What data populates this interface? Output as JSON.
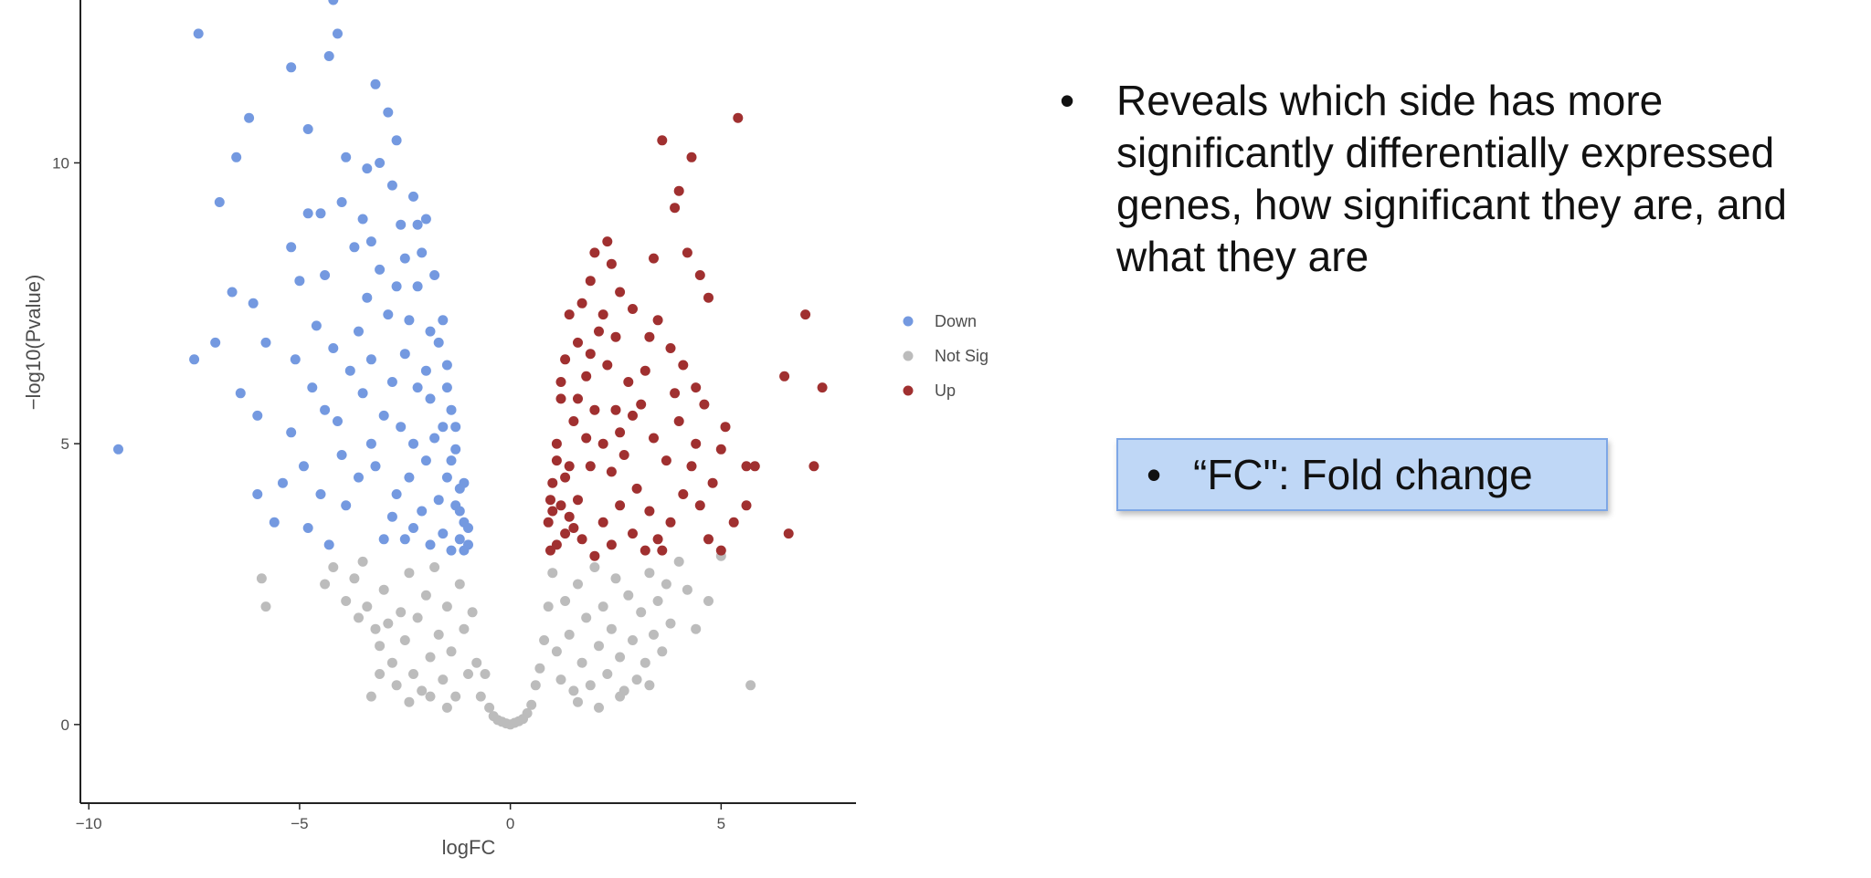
{
  "chart_data": {
    "type": "scatter",
    "title": "",
    "xlabel": "logFC",
    "ylabel": "−log10(Pvalue)",
    "xlim": [
      -10.2,
      8.2
    ],
    "ylim": [
      -1.4,
      12.9
    ],
    "x_ticks": [
      -10,
      -5,
      0,
      5
    ],
    "x_tick_labels": [
      "−10",
      "−5",
      "0",
      "5"
    ],
    "y_ticks": [
      0,
      5,
      10
    ],
    "y_tick_labels": [
      "0",
      "5",
      "10"
    ],
    "grid": false,
    "legend": {
      "position": "right",
      "entries": [
        {
          "label": "Down",
          "color": "#7499e0"
        },
        {
          "label": "Not Sig",
          "color": "#bcbcbc"
        },
        {
          "label": "Up",
          "color": "#a03030"
        }
      ]
    },
    "series": [
      {
        "name": "Down",
        "color": "#7499e0",
        "points": [
          [
            -9.3,
            4.9
          ],
          [
            -7.4,
            12.3
          ],
          [
            -6.9,
            9.3
          ],
          [
            -6.5,
            10.1
          ],
          [
            -6.2,
            10.8
          ],
          [
            -6.6,
            7.7
          ],
          [
            -6.1,
            7.5
          ],
          [
            -7.5,
            6.5
          ],
          [
            -7.0,
            6.8
          ],
          [
            -6.4,
            5.9
          ],
          [
            -6.0,
            5.5
          ],
          [
            -5.8,
            6.8
          ],
          [
            -6.0,
            4.1
          ],
          [
            -5.2,
            11.7
          ],
          [
            -4.8,
            10.6
          ],
          [
            -4.3,
            11.9
          ],
          [
            -4.1,
            12.3
          ],
          [
            -4.2,
            12.9
          ],
          [
            -3.2,
            11.4
          ],
          [
            -2.9,
            10.9
          ],
          [
            -2.7,
            10.4
          ],
          [
            -3.1,
            10.0
          ],
          [
            -4.5,
            9.1
          ],
          [
            -4.0,
            9.3
          ],
          [
            -3.5,
            9.0
          ],
          [
            -3.7,
            8.5
          ],
          [
            -4.4,
            8.0
          ],
          [
            -5.0,
            7.9
          ],
          [
            -4.6,
            7.1
          ],
          [
            -4.2,
            6.7
          ],
          [
            -5.1,
            6.5
          ],
          [
            -4.7,
            6.0
          ],
          [
            -4.4,
            5.6
          ],
          [
            -5.2,
            5.2
          ],
          [
            -4.9,
            4.6
          ],
          [
            -4.5,
            4.1
          ],
          [
            -5.4,
            4.3
          ],
          [
            -5.6,
            3.6
          ],
          [
            -4.8,
            3.5
          ],
          [
            -4.3,
            3.2
          ],
          [
            -3.9,
            3.9
          ],
          [
            -3.6,
            4.4
          ],
          [
            -3.3,
            5.0
          ],
          [
            -3.0,
            5.5
          ],
          [
            -2.8,
            6.1
          ],
          [
            -2.5,
            6.6
          ],
          [
            -2.4,
            7.2
          ],
          [
            -2.2,
            7.8
          ],
          [
            -2.1,
            8.4
          ],
          [
            -2.6,
            8.9
          ],
          [
            -2.3,
            9.4
          ],
          [
            -2.0,
            9.0
          ],
          [
            -1.8,
            8.0
          ],
          [
            -1.6,
            7.2
          ],
          [
            -1.5,
            6.4
          ],
          [
            -1.4,
            5.6
          ],
          [
            -1.3,
            4.9
          ],
          [
            -1.2,
            4.2
          ],
          [
            -1.1,
            3.6
          ],
          [
            -1.0,
            3.2
          ],
          [
            -3.4,
            7.6
          ],
          [
            -3.1,
            8.1
          ],
          [
            -2.9,
            7.3
          ],
          [
            -3.8,
            6.3
          ],
          [
            -3.5,
            5.9
          ],
          [
            -3.2,
            4.6
          ],
          [
            -2.7,
            4.1
          ],
          [
            -2.3,
            3.5
          ],
          [
            -2.0,
            4.7
          ],
          [
            -1.9,
            5.8
          ],
          [
            -1.7,
            6.8
          ],
          [
            -1.6,
            3.4
          ],
          [
            -1.5,
            4.4
          ],
          [
            -1.4,
            3.1
          ],
          [
            -1.9,
            3.2
          ],
          [
            -2.5,
            3.3
          ],
          [
            -2.8,
            3.7
          ],
          [
            -3.0,
            3.3
          ],
          [
            -4.0,
            4.8
          ],
          [
            -4.1,
            5.4
          ],
          [
            -3.6,
            7.0
          ],
          [
            -3.3,
            6.5
          ],
          [
            -2.6,
            5.3
          ],
          [
            -2.2,
            6.0
          ],
          [
            -1.8,
            5.1
          ],
          [
            -1.3,
            3.9
          ],
          [
            -1.2,
            3.3
          ],
          [
            -1.1,
            3.1
          ],
          [
            -2.4,
            4.4
          ],
          [
            -2.1,
            3.8
          ],
          [
            -1.7,
            4.0
          ],
          [
            -1.6,
            5.3
          ],
          [
            -1.5,
            6.0
          ],
          [
            -1.4,
            4.7
          ],
          [
            -1.3,
            5.3
          ],
          [
            -1.2,
            3.8
          ],
          [
            -1.1,
            4.3
          ],
          [
            -1.0,
            3.5
          ],
          [
            -2.3,
            5.0
          ],
          [
            -2.0,
            6.3
          ],
          [
            -1.9,
            7.0
          ],
          [
            -2.7,
            7.8
          ],
          [
            -2.5,
            8.3
          ],
          [
            -2.2,
            8.9
          ],
          [
            -2.8,
            9.6
          ],
          [
            -3.3,
            8.6
          ],
          [
            -4.8,
            9.1
          ],
          [
            -5.2,
            8.5
          ],
          [
            -3.9,
            10.1
          ],
          [
            -3.4,
            9.9
          ]
        ]
      },
      {
        "name": "Not Sig",
        "color": "#bcbcbc",
        "points": [
          [
            -5.9,
            2.6
          ],
          [
            -5.8,
            2.1
          ],
          [
            -4.2,
            2.8
          ],
          [
            -4.4,
            2.5
          ],
          [
            -3.7,
            2.6
          ],
          [
            -3.9,
            2.2
          ],
          [
            -3.5,
            2.9
          ],
          [
            -3.4,
            2.1
          ],
          [
            -3.6,
            1.9
          ],
          [
            -3.2,
            1.7
          ],
          [
            -3.0,
            2.4
          ],
          [
            -3.1,
            1.4
          ],
          [
            -3.3,
            0.5
          ],
          [
            -2.9,
            1.8
          ],
          [
            -2.8,
            1.1
          ],
          [
            -2.7,
            0.7
          ],
          [
            -2.6,
            2.0
          ],
          [
            -2.5,
            1.5
          ],
          [
            -2.4,
            2.7
          ],
          [
            -2.3,
            0.9
          ],
          [
            -2.2,
            1.9
          ],
          [
            -2.1,
            0.6
          ],
          [
            -2.0,
            2.3
          ],
          [
            -1.9,
            1.2
          ],
          [
            -1.8,
            2.8
          ],
          [
            -1.7,
            1.6
          ],
          [
            -1.6,
            0.8
          ],
          [
            -1.5,
            2.1
          ],
          [
            -1.4,
            1.3
          ],
          [
            -1.3,
            0.5
          ],
          [
            -1.2,
            2.5
          ],
          [
            -1.1,
            1.7
          ],
          [
            -1.0,
            0.9
          ],
          [
            -0.9,
            2.0
          ],
          [
            -0.8,
            1.1
          ],
          [
            -0.7,
            0.5
          ],
          [
            -0.6,
            0.9
          ],
          [
            -0.5,
            0.3
          ],
          [
            -0.4,
            0.15
          ],
          [
            -0.3,
            0.08
          ],
          [
            -0.2,
            0.05
          ],
          [
            -0.1,
            0.02
          ],
          [
            0.0,
            0.0
          ],
          [
            0.1,
            0.03
          ],
          [
            0.2,
            0.06
          ],
          [
            0.3,
            0.1
          ],
          [
            0.4,
            0.2
          ],
          [
            0.5,
            0.35
          ],
          [
            0.6,
            0.7
          ],
          [
            0.7,
            1.0
          ],
          [
            0.8,
            1.5
          ],
          [
            0.9,
            2.1
          ],
          [
            1.0,
            2.7
          ],
          [
            1.1,
            1.3
          ],
          [
            1.2,
            0.8
          ],
          [
            1.3,
            2.2
          ],
          [
            1.4,
            1.6
          ],
          [
            1.5,
            0.6
          ],
          [
            1.6,
            2.5
          ],
          [
            1.7,
            1.1
          ],
          [
            1.8,
            1.9
          ],
          [
            1.9,
            0.7
          ],
          [
            2.0,
            2.8
          ],
          [
            2.1,
            1.4
          ],
          [
            2.2,
            2.1
          ],
          [
            2.3,
            0.9
          ],
          [
            2.4,
            1.7
          ],
          [
            2.5,
            2.6
          ],
          [
            2.6,
            1.2
          ],
          [
            2.7,
            0.6
          ],
          [
            2.8,
            2.3
          ],
          [
            2.9,
            1.5
          ],
          [
            3.0,
            0.8
          ],
          [
            3.1,
            2.0
          ],
          [
            3.2,
            1.1
          ],
          [
            3.3,
            2.7
          ],
          [
            3.4,
            1.6
          ],
          [
            3.5,
            2.2
          ],
          [
            3.6,
            1.3
          ],
          [
            3.7,
            2.5
          ],
          [
            3.8,
            1.8
          ],
          [
            4.0,
            2.9
          ],
          [
            4.2,
            2.4
          ],
          [
            4.4,
            1.7
          ],
          [
            4.7,
            2.2
          ],
          [
            5.0,
            3.0
          ],
          [
            5.7,
            0.7
          ],
          [
            -2.4,
            0.4
          ],
          [
            -1.9,
            0.5
          ],
          [
            -1.5,
            0.3
          ],
          [
            1.6,
            0.4
          ],
          [
            2.1,
            0.3
          ],
          [
            2.6,
            0.5
          ],
          [
            -3.1,
            0.9
          ],
          [
            3.3,
            0.7
          ]
        ]
      },
      {
        "name": "Up",
        "color": "#a03030",
        "points": [
          [
            5.4,
            10.8
          ],
          [
            3.6,
            10.4
          ],
          [
            4.3,
            10.1
          ],
          [
            4.0,
            9.5
          ],
          [
            3.9,
            9.2
          ],
          [
            3.4,
            8.3
          ],
          [
            2.3,
            8.6
          ],
          [
            2.0,
            8.4
          ],
          [
            2.4,
            8.2
          ],
          [
            1.9,
            7.9
          ],
          [
            2.6,
            7.7
          ],
          [
            2.9,
            7.4
          ],
          [
            4.7,
            7.6
          ],
          [
            4.5,
            8.0
          ],
          [
            4.2,
            8.4
          ],
          [
            3.5,
            7.2
          ],
          [
            3.3,
            6.9
          ],
          [
            3.8,
            6.7
          ],
          [
            4.1,
            6.4
          ],
          [
            4.4,
            6.0
          ],
          [
            4.6,
            5.7
          ],
          [
            5.1,
            5.3
          ],
          [
            5.6,
            4.6
          ],
          [
            5.0,
            4.9
          ],
          [
            4.8,
            4.3
          ],
          [
            4.5,
            3.9
          ],
          [
            4.1,
            4.1
          ],
          [
            3.8,
            3.6
          ],
          [
            3.5,
            3.3
          ],
          [
            3.2,
            3.1
          ],
          [
            2.9,
            3.4
          ],
          [
            2.6,
            3.9
          ],
          [
            2.4,
            4.5
          ],
          [
            2.2,
            5.0
          ],
          [
            2.0,
            5.6
          ],
          [
            1.8,
            6.2
          ],
          [
            1.6,
            6.8
          ],
          [
            1.4,
            7.3
          ],
          [
            1.3,
            6.5
          ],
          [
            1.2,
            5.8
          ],
          [
            1.1,
            5.0
          ],
          [
            1.0,
            4.3
          ],
          [
            0.9,
            3.6
          ],
          [
            0.95,
            3.1
          ],
          [
            1.3,
            3.4
          ],
          [
            1.6,
            4.0
          ],
          [
            1.9,
            4.6
          ],
          [
            2.2,
            3.6
          ],
          [
            2.5,
            5.6
          ],
          [
            2.8,
            6.1
          ],
          [
            3.1,
            5.7
          ],
          [
            3.4,
            5.1
          ],
          [
            3.7,
            4.7
          ],
          [
            4.0,
            5.4
          ],
          [
            4.3,
            4.6
          ],
          [
            1.5,
            5.4
          ],
          [
            1.7,
            7.5
          ],
          [
            2.1,
            7.0
          ],
          [
            2.3,
            6.4
          ],
          [
            2.7,
            4.8
          ],
          [
            3.0,
            4.2
          ],
          [
            3.3,
            3.8
          ],
          [
            3.6,
            3.1
          ],
          [
            1.2,
            3.9
          ],
          [
            1.4,
            4.6
          ],
          [
            1.1,
            3.2
          ],
          [
            1.0,
            3.8
          ],
          [
            1.7,
            3.3
          ],
          [
            2.0,
            3.0
          ],
          [
            2.4,
            3.2
          ],
          [
            6.5,
            6.2
          ],
          [
            7.0,
            7.3
          ],
          [
            7.4,
            6.0
          ],
          [
            7.2,
            4.6
          ],
          [
            6.6,
            3.4
          ],
          [
            5.8,
            4.6
          ],
          [
            5.6,
            3.9
          ],
          [
            5.3,
            3.6
          ],
          [
            5.0,
            3.1
          ],
          [
            4.7,
            3.3
          ],
          [
            1.8,
            5.1
          ],
          [
            1.3,
            4.4
          ],
          [
            1.5,
            3.5
          ],
          [
            2.6,
            5.2
          ],
          [
            3.2,
            6.3
          ],
          [
            3.9,
            5.9
          ],
          [
            4.4,
            5.0
          ],
          [
            2.9,
            5.5
          ],
          [
            1.9,
            6.6
          ],
          [
            2.2,
            7.3
          ],
          [
            2.5,
            6.9
          ],
          [
            1.6,
            5.8
          ],
          [
            1.2,
            6.1
          ],
          [
            1.1,
            4.7
          ],
          [
            0.95,
            4.0
          ],
          [
            1.4,
            3.7
          ]
        ]
      }
    ]
  },
  "bullets": {
    "main": "Reveals which side has more significantly differentially expressed genes, how significant they are, and what they are",
    "dot": "•"
  },
  "callout": {
    "dot": "•",
    "text": "“FC\": Fold change",
    "bg": "#bfd7f6",
    "border": "#7ea7e6"
  }
}
